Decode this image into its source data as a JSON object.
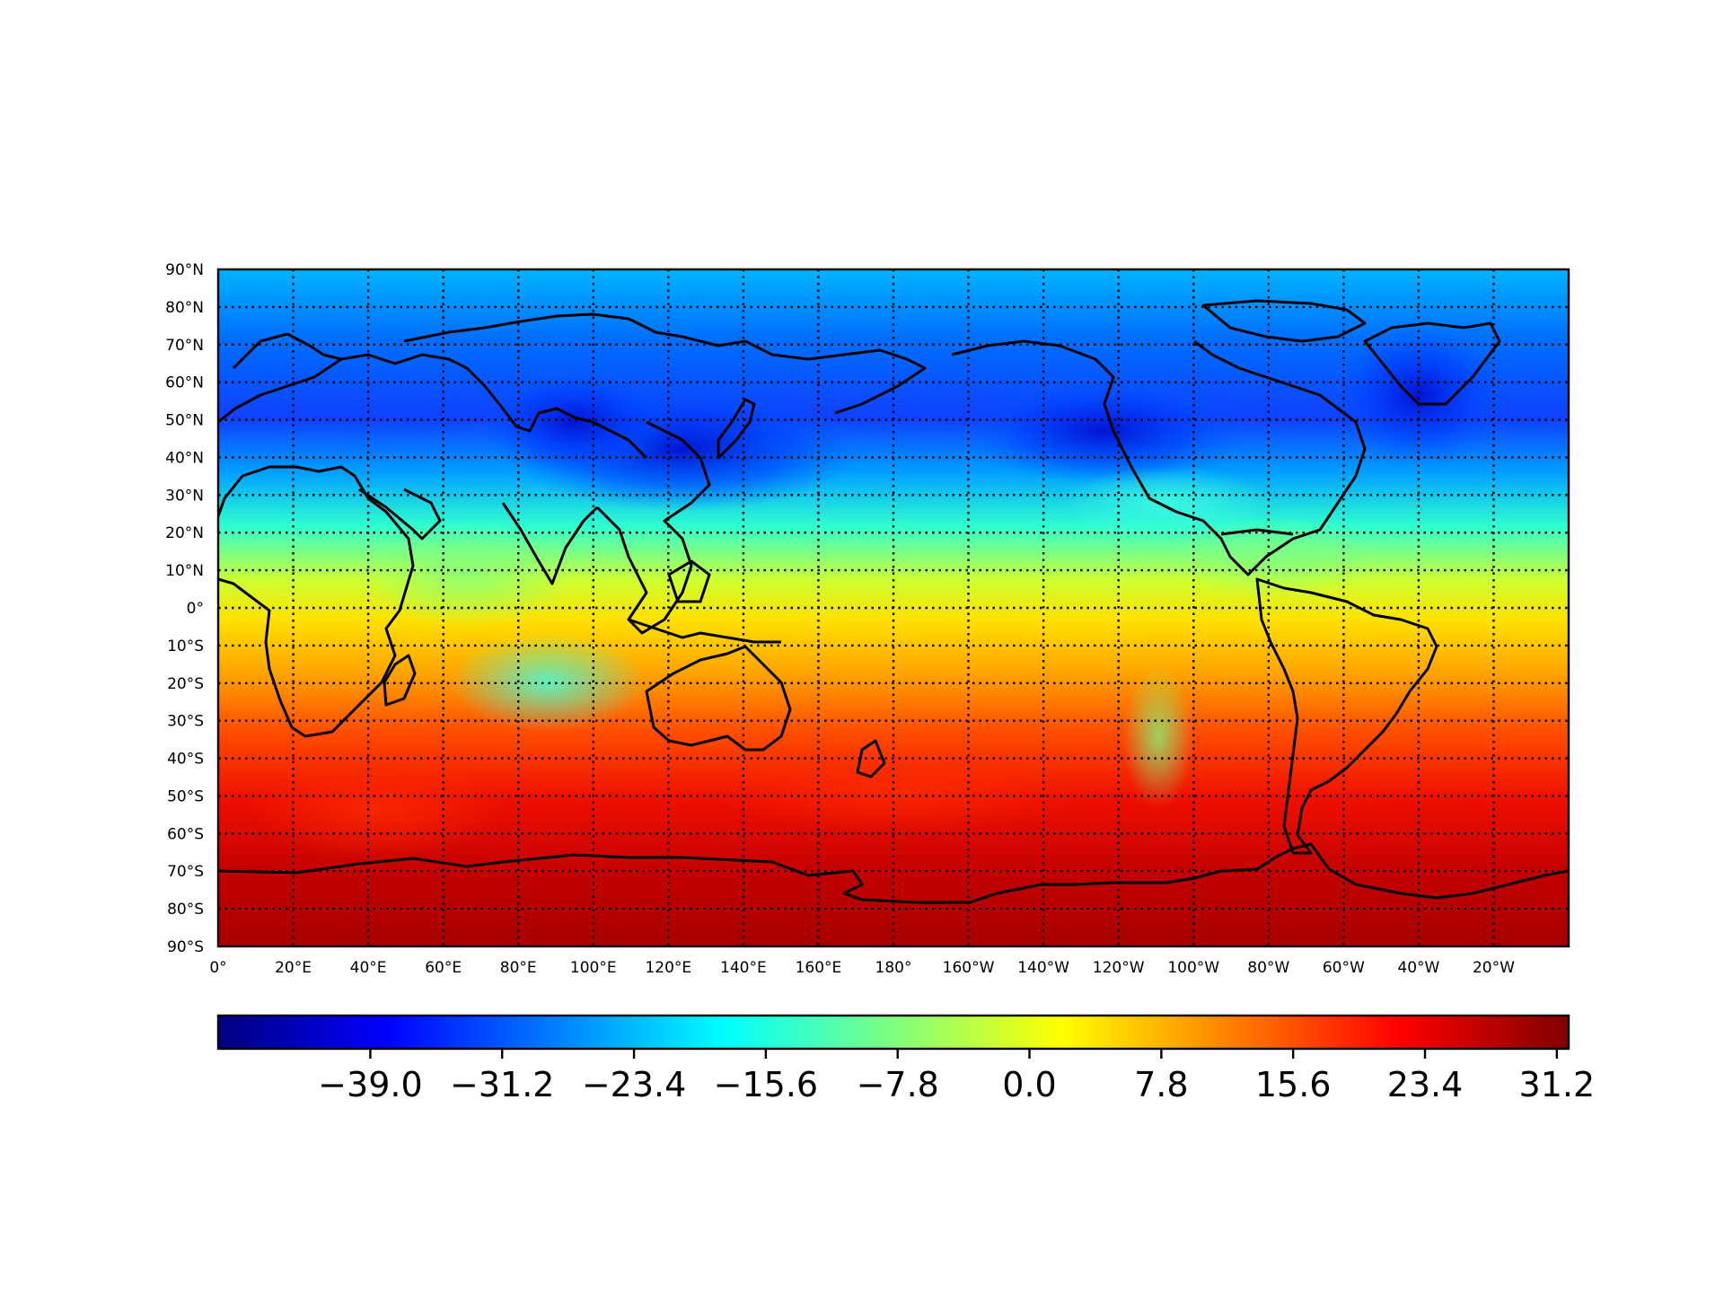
{
  "map": {
    "type": "heatmap",
    "projection": "plate-carree",
    "lon_range": [
      0,
      360
    ],
    "lat_range": [
      -90,
      90
    ],
    "central_longitude": 180,
    "gridlines": true,
    "gridline_style": "dotted",
    "lon_tick_labels": [
      "0°",
      "20°E",
      "40°E",
      "60°E",
      "80°E",
      "100°E",
      "120°E",
      "140°E",
      "160°E",
      "180°",
      "160°W",
      "140°W",
      "120°W",
      "100°W",
      "80°W",
      "60°W",
      "40°W",
      "20°W"
    ],
    "lat_tick_labels": [
      "90°N",
      "80°N",
      "70°N",
      "60°N",
      "50°N",
      "40°N",
      "30°N",
      "20°N",
      "10°N",
      "0°",
      "10°S",
      "20°S",
      "30°S",
      "40°S",
      "50°S",
      "60°S",
      "70°S",
      "80°S",
      "90°S"
    ],
    "field_pattern": "blue (cold) in northern hemisphere mid/high latitudes, red (warm) in southern hemisphere",
    "colors": {
      "coastline": "#000000",
      "gridline": "#000000",
      "background": "#ffffff"
    }
  },
  "colorbar": {
    "colormap": "jet",
    "orientation": "horizontal",
    "vmin": -48.0,
    "vmax": 31.9,
    "tick_values": [
      -39.0,
      -31.2,
      -23.4,
      -15.6,
      -7.8,
      0.0,
      7.8,
      15.6,
      23.4,
      31.2
    ],
    "tick_labels": [
      "−39.0",
      "−31.2",
      "−23.4",
      "−15.6",
      "−7.8",
      "0.0",
      "7.8",
      "15.6",
      "23.4",
      "31.2"
    ],
    "colors": [
      "#00007f",
      "#0000ff",
      "#007fff",
      "#00ffff",
      "#7fff7f",
      "#ffff00",
      "#ff7f00",
      "#ff0000",
      "#7f0000"
    ]
  }
}
